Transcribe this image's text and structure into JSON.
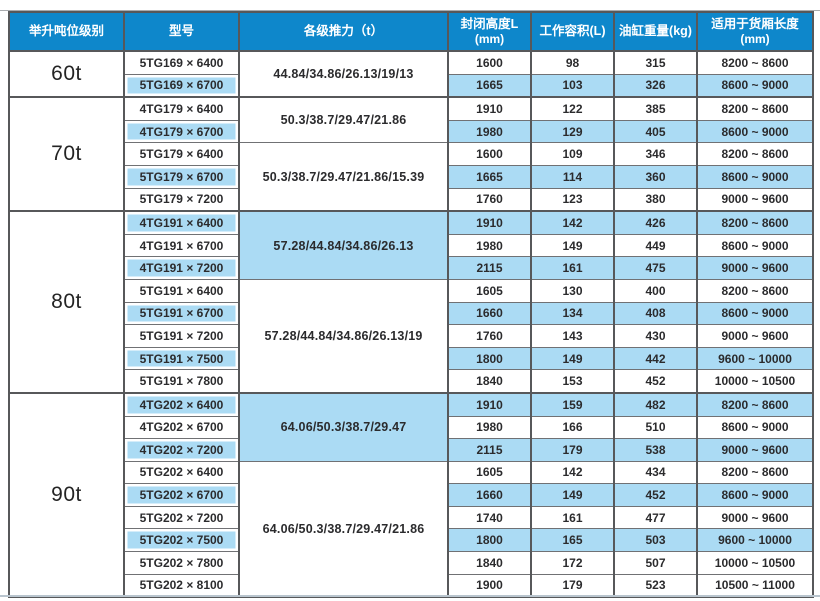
{
  "colors": {
    "header_bg": "#0e87cb",
    "header_text": "#ffffff",
    "highlight_row_bg": "#abdbf4",
    "grid_border": "#57585a",
    "cell_text": "#2b2b2d"
  },
  "table": {
    "columns": [
      {
        "label": "举升吨位级别",
        "sub": ""
      },
      {
        "label": "型号",
        "sub": ""
      },
      {
        "label": "各级推力（t）",
        "sub": ""
      },
      {
        "label": "封闭高度L",
        "sub": "(mm)"
      },
      {
        "label": "工作容积(L)",
        "sub": ""
      },
      {
        "label": "油缸重量(kg)",
        "sub": ""
      },
      {
        "label": "适用于货厢长度",
        "sub": "(mm)"
      }
    ],
    "groups": [
      {
        "tonnage": "60t",
        "subgroups": [
          {
            "thrust": "44.84/34.86/26.13/19/13",
            "thrust_highlight": false,
            "rows": [
              {
                "model": "5TG169 × 6400",
                "closed_height": "1600",
                "volume": "98",
                "weight": "315",
                "box_length": "8200 ~ 8600",
                "highlight": false
              },
              {
                "model": "5TG169 × 6700",
                "closed_height": "1665",
                "volume": "103",
                "weight": "326",
                "box_length": "8600 ~ 9000",
                "highlight": true
              }
            ]
          }
        ]
      },
      {
        "tonnage": "70t",
        "subgroups": [
          {
            "thrust": "50.3/38.7/29.47/21.86",
            "thrust_highlight": false,
            "rows": [
              {
                "model": "4TG179 × 6400",
                "closed_height": "1910",
                "volume": "122",
                "weight": "385",
                "box_length": "8200 ~ 8600",
                "highlight": false
              },
              {
                "model": "4TG179 × 6700",
                "closed_height": "1980",
                "volume": "129",
                "weight": "405",
                "box_length": "8600 ~ 9000",
                "highlight": true
              }
            ]
          },
          {
            "thrust": "50.3/38.7/29.47/21.86/15.39",
            "thrust_highlight": false,
            "rows": [
              {
                "model": "5TG179 × 6400",
                "closed_height": "1600",
                "volume": "109",
                "weight": "346",
                "box_length": "8200 ~ 8600",
                "highlight": false
              },
              {
                "model": "5TG179 × 6700",
                "closed_height": "1665",
                "volume": "114",
                "weight": "360",
                "box_length": "8600 ~ 9000",
                "highlight": true
              },
              {
                "model": "5TG179 × 7200",
                "closed_height": "1760",
                "volume": "123",
                "weight": "380",
                "box_length": "9000 ~ 9600",
                "highlight": false
              }
            ]
          }
        ]
      },
      {
        "tonnage": "80t",
        "subgroups": [
          {
            "thrust": "57.28/44.84/34.86/26.13",
            "thrust_highlight": true,
            "rows": [
              {
                "model": "4TG191 × 6400",
                "closed_height": "1910",
                "volume": "142",
                "weight": "426",
                "box_length": "8200 ~ 8600",
                "highlight": true
              },
              {
                "model": "4TG191 × 6700",
                "closed_height": "1980",
                "volume": "149",
                "weight": "449",
                "box_length": "8600 ~ 9000",
                "highlight": false
              },
              {
                "model": "4TG191 × 7200",
                "closed_height": "2115",
                "volume": "161",
                "weight": "475",
                "box_length": "9000 ~ 9600",
                "highlight": true
              }
            ]
          },
          {
            "thrust": "57.28/44.84/34.86/26.13/19",
            "thrust_highlight": false,
            "rows": [
              {
                "model": "5TG191 × 6400",
                "closed_height": "1605",
                "volume": "130",
                "weight": "400",
                "box_length": "8200 ~ 8600",
                "highlight": false
              },
              {
                "model": "5TG191 × 6700",
                "closed_height": "1660",
                "volume": "134",
                "weight": "408",
                "box_length": "8600 ~ 9000",
                "highlight": true
              },
              {
                "model": "5TG191 × 7200",
                "closed_height": "1760",
                "volume": "143",
                "weight": "430",
                "box_length": "9000 ~ 9600",
                "highlight": false
              },
              {
                "model": "5TG191 × 7500",
                "closed_height": "1800",
                "volume": "149",
                "weight": "442",
                "box_length": "9600 ~ 10000",
                "highlight": true
              },
              {
                "model": "5TG191 × 7800",
                "closed_height": "1840",
                "volume": "153",
                "weight": "452",
                "box_length": "10000 ~ 10500",
                "highlight": false
              }
            ]
          }
        ]
      },
      {
        "tonnage": "90t",
        "subgroups": [
          {
            "thrust": "64.06/50.3/38.7/29.47",
            "thrust_highlight": true,
            "rows": [
              {
                "model": "4TG202 × 6400",
                "closed_height": "1910",
                "volume": "159",
                "weight": "482",
                "box_length": "8200 ~ 8600",
                "highlight": true
              },
              {
                "model": "4TG202 × 6700",
                "closed_height": "1980",
                "volume": "166",
                "weight": "510",
                "box_length": "8600 ~ 9000",
                "highlight": false
              },
              {
                "model": "4TG202 × 7200",
                "closed_height": "2115",
                "volume": "179",
                "weight": "538",
                "box_length": "9000 ~ 9600",
                "highlight": true
              }
            ]
          },
          {
            "thrust": "64.06/50.3/38.7/29.47/21.86",
            "thrust_highlight": false,
            "rows": [
              {
                "model": "5TG202 × 6400",
                "closed_height": "1605",
                "volume": "142",
                "weight": "434",
                "box_length": "8200 ~ 8600",
                "highlight": false
              },
              {
                "model": "5TG202 × 6700",
                "closed_height": "1660",
                "volume": "149",
                "weight": "452",
                "box_length": "8600 ~ 9000",
                "highlight": true
              },
              {
                "model": "5TG202 × 7200",
                "closed_height": "1740",
                "volume": "161",
                "weight": "477",
                "box_length": "9000 ~ 9600",
                "highlight": false
              },
              {
                "model": "5TG202 × 7500",
                "closed_height": "1800",
                "volume": "165",
                "weight": "503",
                "box_length": "9600 ~ 10000",
                "highlight": true
              },
              {
                "model": "5TG202 × 7800",
                "closed_height": "1840",
                "volume": "172",
                "weight": "507",
                "box_length": "10000 ~ 10500",
                "highlight": false
              },
              {
                "model": "5TG202 × 8100",
                "closed_height": "1900",
                "volume": "179",
                "weight": "523",
                "box_length": "10500 ~ 11000",
                "highlight": false
              }
            ]
          }
        ]
      }
    ]
  }
}
